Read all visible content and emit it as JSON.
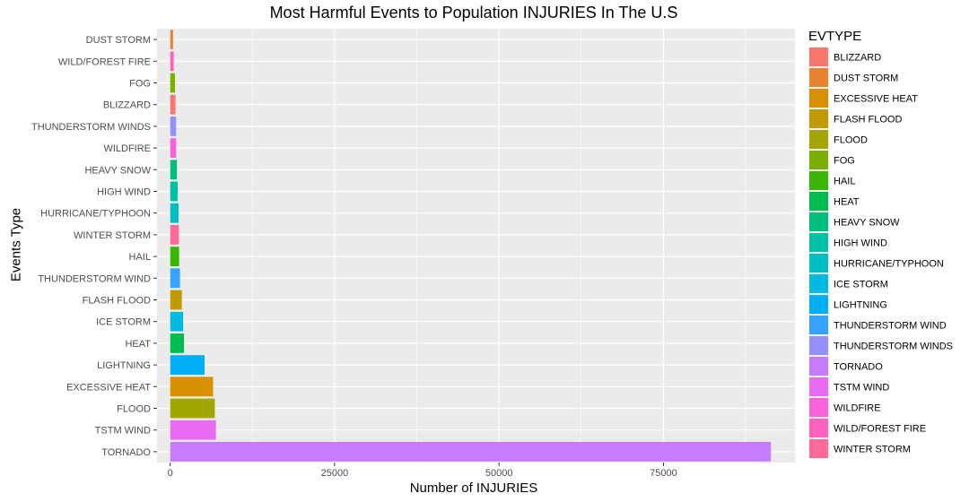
{
  "chart_data": {
    "type": "bar",
    "orientation": "horizontal",
    "title": "Most Harmful Events to Population INJURIES In The U.S",
    "xlabel": "Number of INJURIES",
    "ylabel": "Events Type",
    "xlim": [
      -2000,
      95000
    ],
    "xticks": [
      0,
      25000,
      50000,
      75000
    ],
    "grid": true,
    "legend_position": "right",
    "legend_title": "EVTYPE",
    "categories": [
      "DUST STORM",
      "WILD/FOREST FIRE",
      "FOG",
      "BLIZZARD",
      "THUNDERSTORM WINDS",
      "WILDFIRE",
      "HEAVY SNOW",
      "HIGH WIND",
      "HURRICANE/TYPHOON",
      "WINTER STORM",
      "HAIL",
      "THUNDERSTORM WIND",
      "FLASH FLOOD",
      "ICE STORM",
      "HEAT",
      "LIGHTNING",
      "EXCESSIVE HEAT",
      "FLOOD",
      "TSTM WIND",
      "TORNADO"
    ],
    "values": [
      440,
      545,
      734,
      805,
      908,
      911,
      1021,
      1137,
      1275,
      1321,
      1361,
      1488,
      1777,
      1975,
      2100,
      5230,
      6525,
      6789,
      6957,
      91346
    ],
    "legend_items": [
      {
        "label": "BLIZZARD",
        "color": "#F8766D"
      },
      {
        "label": "DUST STORM",
        "color": "#EA8331"
      },
      {
        "label": "EXCESSIVE HEAT",
        "color": "#D89000"
      },
      {
        "label": "FLASH FLOOD",
        "color": "#C09B00"
      },
      {
        "label": "FLOOD",
        "color": "#A3A500"
      },
      {
        "label": "FOG",
        "color": "#7CAE00"
      },
      {
        "label": "HAIL",
        "color": "#39B600"
      },
      {
        "label": "HEAT",
        "color": "#00BB4E"
      },
      {
        "label": "HEAVY SNOW",
        "color": "#00BF7D"
      },
      {
        "label": "HIGH WIND",
        "color": "#00C1A3"
      },
      {
        "label": "HURRICANE/TYPHOON",
        "color": "#00BFC4"
      },
      {
        "label": "ICE STORM",
        "color": "#00BAE0"
      },
      {
        "label": "LIGHTNING",
        "color": "#00B0F6"
      },
      {
        "label": "THUNDERSTORM WIND",
        "color": "#35A2FF"
      },
      {
        "label": "THUNDERSTORM WINDS",
        "color": "#9590FF"
      },
      {
        "label": "TORNADO",
        "color": "#C77CFF"
      },
      {
        "label": "TSTM WIND",
        "color": "#E76BF3"
      },
      {
        "label": "WILDFIRE",
        "color": "#FA62DB"
      },
      {
        "label": "WILD/FOREST FIRE",
        "color": "#FF62BC"
      },
      {
        "label": "WINTER STORM",
        "color": "#FF6A98"
      }
    ],
    "panel_background": "#EBEBEB",
    "grid_color": "#FFFFFF"
  }
}
